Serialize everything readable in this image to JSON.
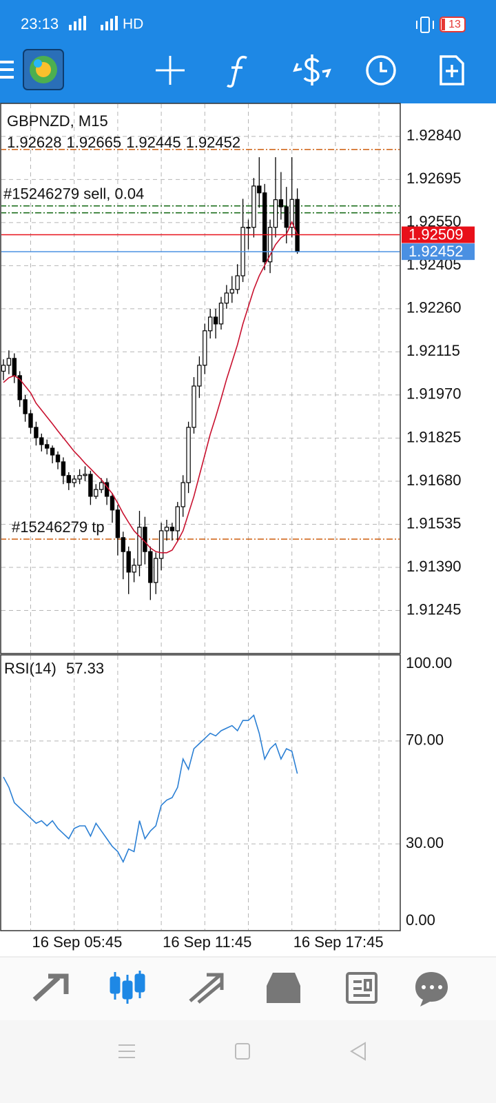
{
  "status_bar": {
    "time": "23:13",
    "network": "HD",
    "battery": "13"
  },
  "chart_data": [
    {
      "type": "candlestick",
      "title": "GBPNZD, M15",
      "categories": [
        null,
        null,
        null,
        null,
        null,
        "16 Sep 05:45",
        null,
        null,
        null,
        null,
        null,
        null,
        null,
        null,
        null,
        null,
        null,
        null,
        null,
        null,
        null,
        null,
        null,
        null,
        null,
        null,
        null,
        null,
        null,
        "16 Sep 11:45",
        null,
        null,
        null,
        null,
        null,
        null,
        null,
        null,
        null,
        null,
        null,
        null,
        null,
        null,
        null,
        null,
        null,
        null,
        null,
        null,
        null,
        null,
        null,
        "16 Sep 17:45",
        null
      ],
      "open": [
        1.9205,
        1.9207,
        1.92093,
        1.92035,
        1.91954,
        1.91907,
        1.91861,
        1.91826,
        1.91803,
        1.91791,
        1.91768,
        1.91745,
        1.91699,
        1.91675,
        1.91687,
        1.91699,
        1.91703,
        1.91629,
        1.91652,
        1.91675,
        1.91629,
        1.91583,
        1.9149,
        1.91443,
        1.91374,
        1.91397,
        1.91525,
        1.91443,
        1.91339,
        1.9142,
        1.91513,
        1.91525,
        1.91513,
        1.91594,
        1.91675,
        1.91861,
        1.92,
        1.9207,
        1.92186,
        1.92232,
        1.92209,
        1.92279,
        1.92313,
        1.92325,
        1.92371,
        1.92534,
        1.92534,
        1.92673,
        1.9265,
        1.92418,
        1.92534,
        1.92627,
        1.92603,
        1.92534,
        1.92628
      ],
      "high": [
        1.9209,
        1.9212,
        1.9211,
        1.9205,
        1.9197,
        1.9192,
        1.9188,
        1.9184,
        1.9182,
        1.918,
        1.9178,
        1.9176,
        1.9171,
        1.917,
        1.9172,
        1.9173,
        1.91715,
        1.9167,
        1.9169,
        1.9169,
        1.9164,
        1.916,
        1.9151,
        1.9146,
        1.9142,
        1.9158,
        1.9156,
        1.9146,
        1.9144,
        1.9154,
        1.9155,
        1.9154,
        1.9161,
        1.917,
        1.9188,
        1.9203,
        1.921,
        1.9221,
        1.9226,
        1.9226,
        1.923,
        1.9234,
        1.9237,
        1.9241,
        1.9263,
        1.9256,
        1.927,
        1.9277,
        1.9268,
        1.9256,
        1.9277,
        1.9272,
        1.9267,
        1.9277,
        1.92665
      ],
      "low": [
        1.9202,
        1.9204,
        1.9201,
        1.9193,
        1.9188,
        1.9184,
        1.918,
        1.9178,
        1.9177,
        1.9174,
        1.9172,
        1.9167,
        1.9165,
        1.9166,
        1.9167,
        1.9168,
        1.916,
        1.9162,
        1.9164,
        1.916,
        1.9154,
        1.9143,
        1.9135,
        1.913,
        1.9134,
        1.9136,
        1.914,
        1.9128,
        1.913,
        1.9138,
        1.9148,
        1.9148,
        1.9148,
        1.9156,
        1.9164,
        1.9184,
        1.9196,
        1.9204,
        1.9216,
        1.9216,
        1.9219,
        1.9226,
        1.9228,
        1.9231,
        1.9235,
        1.9246,
        1.925,
        1.926,
        1.9239,
        1.9238,
        1.925,
        1.9256,
        1.9248,
        1.925,
        1.92445
      ],
      "close": [
        1.9207,
        1.92093,
        1.92035,
        1.91954,
        1.91907,
        1.91861,
        1.91826,
        1.91803,
        1.91791,
        1.91768,
        1.91745,
        1.91699,
        1.91675,
        1.91687,
        1.91699,
        1.91703,
        1.91629,
        1.91652,
        1.91675,
        1.91629,
        1.91583,
        1.9149,
        1.91443,
        1.91374,
        1.91397,
        1.91525,
        1.91443,
        1.91339,
        1.9142,
        1.91513,
        1.91525,
        1.91513,
        1.91594,
        1.91675,
        1.91861,
        1.92,
        1.9207,
        1.92186,
        1.92232,
        1.92209,
        1.92279,
        1.92313,
        1.92325,
        1.92371,
        1.92534,
        1.92534,
        1.92673,
        1.9265,
        1.92418,
        1.92534,
        1.92627,
        1.92603,
        1.92534,
        1.92628,
        1.92452
      ],
      "ma": {
        "color": "#c8102e",
        "values": [
          1.92012,
          1.92028,
          1.92035,
          1.92023,
          1.92,
          1.91977,
          1.91942,
          1.91919,
          1.91896,
          1.91873,
          1.91849,
          1.91826,
          1.91803,
          1.9178,
          1.91761,
          1.9174,
          1.91722,
          1.91703,
          1.91685,
          1.91661,
          1.91638,
          1.91606,
          1.91571,
          1.91541,
          1.91513,
          1.91494,
          1.91476,
          1.91455,
          1.91443,
          1.91439,
          1.91439,
          1.91448,
          1.91478,
          1.91513,
          1.91571,
          1.91629,
          1.91699,
          1.91768,
          1.91838,
          1.91896,
          1.91958,
          1.92023,
          1.92081,
          1.92139,
          1.92209,
          1.92267,
          1.92325,
          1.92371,
          1.92406,
          1.92441,
          1.92476,
          1.92499,
          1.92511,
          1.92552,
          1.92511
        ]
      },
      "ylim": [
        1.911,
        1.92951
      ],
      "yticks": [
        {
          "value": 1.9284,
          "label": "1.92840"
        },
        1.92695,
        {
          "value": 1.9255,
          "label": "1.92550"
        },
        1.92405,
        {
          "value": 1.9226,
          "label": "1.92260"
        },
        1.92115,
        {
          "value": 1.9197,
          "label": "1.91970"
        },
        1.91825,
        {
          "value": 1.9168,
          "label": "1.91680"
        },
        1.91535,
        {
          "value": 1.9139,
          "label": "1.91390"
        },
        1.91245
      ],
      "grid": true,
      "levels": [
        {
          "value": 1.92796,
          "color": "#d2691e"
        },
        {
          "label": "#15246279 sell, 0.04",
          "value": 1.92606,
          "color": "#1b6e1b"
        },
        {
          "value": 1.92583,
          "color": "#1b6e1b"
        },
        {
          "label": "#15246279 tp",
          "value": 1.91485,
          "color": "#d2691e"
        }
      ],
      "ask": {
        "value": 1.92509,
        "color": "#e8101a"
      },
      "bid": {
        "value": 1.92452,
        "color": "#4a90e2"
      }
    },
    {
      "type": "line",
      "title": "RSI(14)",
      "color": "#2a7fd4",
      "values": [
        56,
        52,
        46,
        44,
        42,
        40,
        38,
        39,
        37,
        39,
        36,
        34,
        32,
        36,
        37,
        37,
        33,
        38,
        35,
        32,
        29,
        27,
        23,
        28,
        27,
        39,
        32,
        35,
        37,
        45,
        47,
        48,
        52,
        63,
        59,
        67,
        69,
        71,
        73,
        72,
        74,
        75,
        76,
        74,
        78,
        78,
        80,
        73,
        63,
        67,
        69,
        63,
        67,
        66,
        57.33
      ],
      "ylim": [
        0,
        100
      ],
      "yticks": [
        {
          "value": 100,
          "label": "100.00"
        },
        {
          "value": 70,
          "label": "70.00"
        },
        {
          "value": 30,
          "label": "30.00"
        },
        {
          "value": 0,
          "label": "0.00"
        }
      ],
      "grid": true
    }
  ]
}
